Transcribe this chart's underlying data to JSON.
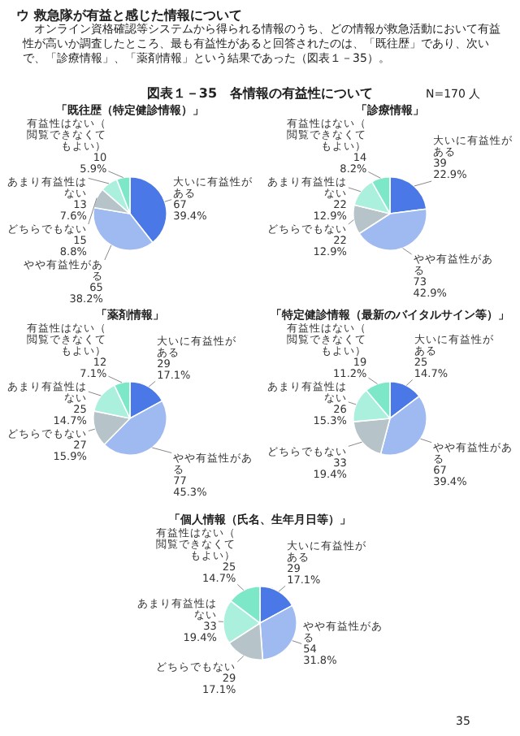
{
  "chart_data": [
    {
      "type": "pie",
      "title": "「既往歴（特定健診情報）」",
      "categories": [
        "大いに有益性がある",
        "やや有益性がある",
        "どちらでもない",
        "あまり有益性はない",
        "有益性はない（閲覧できなくてもよい）"
      ],
      "values": [
        67,
        65,
        15,
        13,
        10
      ],
      "value_labels": [
        "67\n39.4%",
        "65\n38.2%",
        "15\n8.8%",
        "13\n7.6%",
        "10\n5.9%"
      ],
      "colors": [
        "#4a78e6",
        "#9fbaf0",
        "#b6c3c8",
        "#aaf0dc",
        "#7ce8c8"
      ],
      "legend": false,
      "annotations": [
        "ウ 救急隊が有益と感じた情報について",
        "オンライン資格確認等システムから得られる情報のうち、どの情報が救急活動において有益性が高いか調査したところ、最も有益性があると回答されたのは、「既往歴」であり、次いで、「診療情報」、「薬剤情報」という結果であった（図表１－35）。",
        "図表１－35　各情報の有益性について",
        "N=170 人",
        "35"
      ]
    },
    {
      "type": "pie",
      "title": "「診療情報」",
      "categories": [
        "大いに有益性がある",
        "やや有益性がある",
        "どちらでもない",
        "あまり有益性はない",
        "有益性はない（閲覧できなくてもよい）"
      ],
      "values": [
        39,
        73,
        22,
        22,
        14
      ],
      "value_labels": [
        "39\n22.9%",
        "73\n42.9%",
        "22\n12.9%",
        "22\n12.9%",
        "14\n8.2%"
      ],
      "colors": [
        "#4a78e6",
        "#9fbaf0",
        "#b6c3c8",
        "#aaf0dc",
        "#7ce8c8"
      ],
      "legend": false
    },
    {
      "type": "pie",
      "title": "「薬剤情報」",
      "categories": [
        "大いに有益性がある",
        "やや有益性がある",
        "どちらでもない",
        "あまり有益性はない",
        "有益性はない（閲覧できなくてもよい）"
      ],
      "values": [
        29,
        77,
        27,
        25,
        12
      ],
      "value_labels": [
        "29\n17.1%",
        "77\n45.3%",
        "27\n15.9%",
        "25\n14.7%",
        "12\n7.1%"
      ],
      "colors": [
        "#4a78e6",
        "#9fbaf0",
        "#b6c3c8",
        "#aaf0dc",
        "#7ce8c8"
      ],
      "legend": false
    },
    {
      "type": "pie",
      "title": "「特定健診情報（最新のバイタルサイン等）」",
      "categories": [
        "大いに有益性がある",
        "やや有益性がある",
        "どちらでもない",
        "あまり有益性はない",
        "有益性はない（閲覧できなくてもよい）"
      ],
      "values": [
        25,
        67,
        33,
        26,
        19
      ],
      "value_labels": [
        "25\n14.7%",
        "67\n39.4%",
        "33\n19.4%",
        "26\n15.3%",
        "19\n11.2%"
      ],
      "colors": [
        "#4a78e6",
        "#9fbaf0",
        "#b6c3c8",
        "#aaf0dc",
        "#7ce8c8"
      ],
      "legend": false
    },
    {
      "type": "pie",
      "title": "「個人情報（氏名、生年月日等）」",
      "categories": [
        "大いに有益性がある",
        "やや有益性がある",
        "どちらでもない",
        "あまり有益性はない",
        "有益性はない（閲覧できなくてもよい）"
      ],
      "values": [
        29,
        54,
        29,
        33,
        25
      ],
      "value_labels": [
        "29\n17.1%",
        "54\n31.8%",
        "29\n17.1%",
        "33\n19.4%",
        "25\n14.7%"
      ],
      "colors": [
        "#4a78e6",
        "#9fbaf0",
        "#b6c3c8",
        "#aaf0dc",
        "#7ce8c8"
      ],
      "legend": false
    }
  ]
}
